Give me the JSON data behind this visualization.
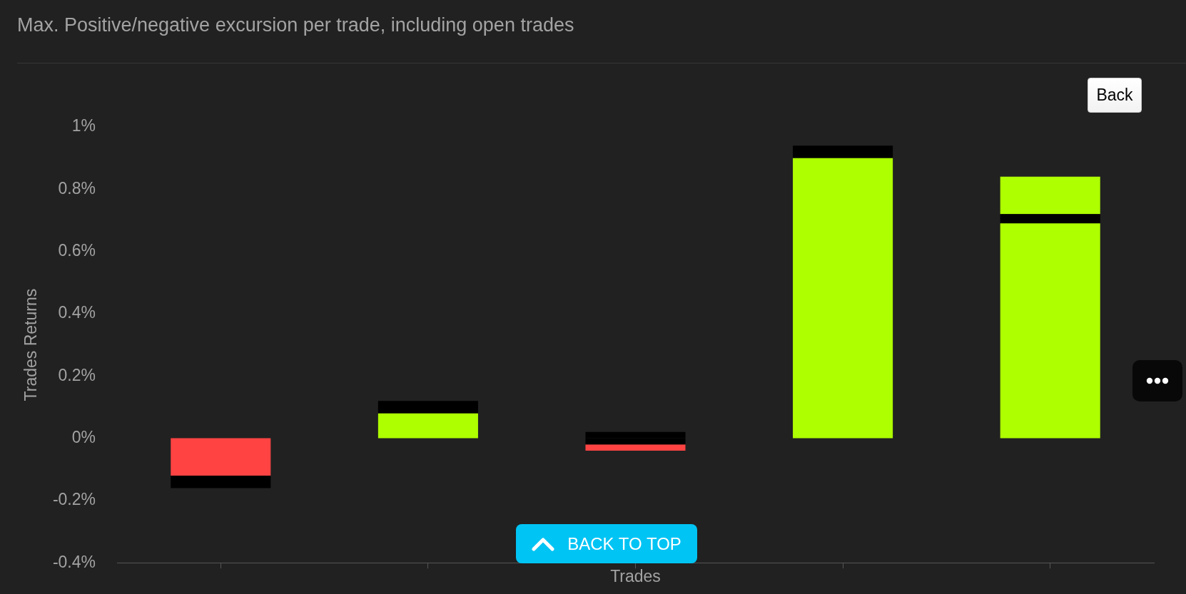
{
  "chart_data": {
    "type": "bar",
    "title": "Max. Positive/negative excursion per trade, including open trades",
    "xlabel": "Trades",
    "ylabel": "Trades Returns",
    "categories": [
      null,
      null,
      null,
      null,
      null
    ],
    "stacked": true,
    "series": [
      {
        "values": [
          -0.12,
          0.08,
          0.02,
          0.9,
          0.69
        ],
        "colors": [
          "#ff4343",
          "#aeff00",
          "#000000",
          "#aeff00",
          "#aeff00"
        ]
      },
      {
        "color": "#000000",
        "values": [
          -0.04,
          0.04,
          -0.02,
          0.04,
          0.03
        ]
      },
      {
        "values": [
          null,
          null,
          -0.02,
          null,
          0.12
        ],
        "colors": [
          "#ff4343",
          "#aeff00",
          "#ff4343",
          "#aeff00",
          "#aeff00"
        ]
      }
    ],
    "ylim": [
      -0.4,
      1
    ],
    "yticks": [
      {
        "value": -0.4,
        "label": "-0.4%"
      },
      {
        "value": -0.2,
        "label": "-0.2%"
      },
      {
        "value": 0,
        "label": "0%"
      },
      {
        "value": 0.2,
        "label": "0.2%"
      },
      {
        "value": 0.4,
        "label": "0.4%"
      },
      {
        "value": 0.6,
        "label": "0.6%"
      },
      {
        "value": 0.8,
        "label": "0.8%"
      },
      {
        "value": 1,
        "label": "1%"
      }
    ],
    "grid": false,
    "legend": false,
    "tick_labels": "y",
    "annotations": [
      "Back",
      "BACK TO TOP"
    ]
  }
}
